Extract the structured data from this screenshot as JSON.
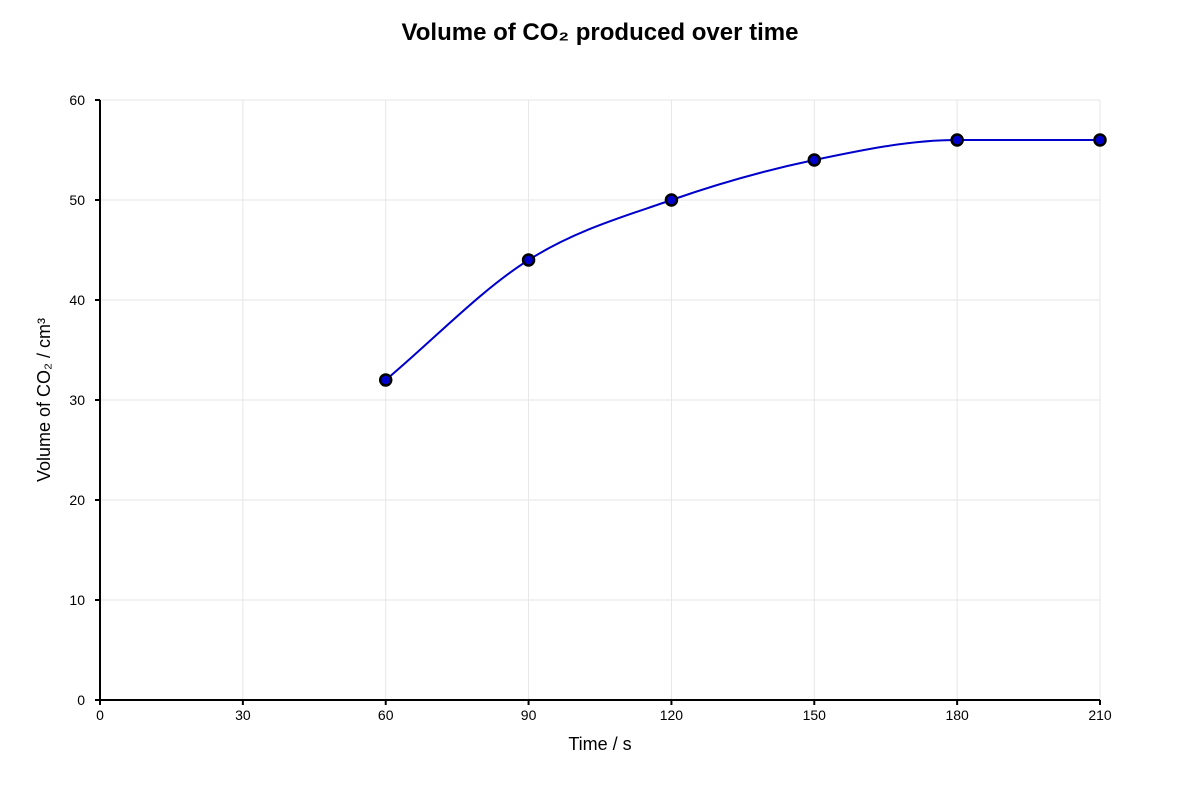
{
  "chart_data": {
    "type": "line",
    "title": "Volume of CO₂ produced over time",
    "xlabel": "Time / s",
    "ylabel": "Volume of CO₂ / cm³",
    "x": [
      60,
      90,
      120,
      150,
      180,
      210
    ],
    "series": [
      {
        "values": [
          32,
          44,
          50,
          54,
          56,
          56
        ]
      }
    ],
    "xlim": [
      0,
      210
    ],
    "ylim": [
      0,
      60
    ],
    "xticks": [
      0,
      30,
      60,
      90,
      120,
      150,
      180,
      210
    ],
    "yticks": [
      0,
      10,
      20,
      30,
      40,
      50,
      60
    ],
    "grid": true,
    "legend": "none",
    "colors": {
      "line": "#0000cc",
      "marker": "#000000",
      "grid": "#e6e6e6",
      "axis": "#000000"
    }
  }
}
